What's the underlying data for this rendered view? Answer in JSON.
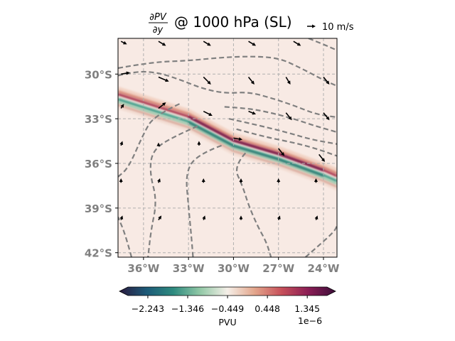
{
  "chart_data": {
    "type": "heatmap",
    "title": {
      "numerator": "∂PV",
      "denominator": "∂y",
      "suffix": "@ 1000 hPa (SL)"
    },
    "quiver_key": "10 m/s",
    "x_ticks": [
      {
        "value": -36,
        "label": "36°W"
      },
      {
        "value": -33,
        "label": "33°W"
      },
      {
        "value": -30,
        "label": "30°W"
      },
      {
        "value": -27,
        "label": "27°W"
      },
      {
        "value": -24,
        "label": "24°W"
      }
    ],
    "y_ticks": [
      {
        "value": -30,
        "label": "30°S"
      },
      {
        "value": -33,
        "label": "33°S"
      },
      {
        "value": -36,
        "label": "36°S"
      },
      {
        "value": -39,
        "label": "39°S"
      },
      {
        "value": -42,
        "label": "42°S"
      }
    ],
    "xlim": [
      -37.7,
      -23.1
    ],
    "ylim": [
      -42.3,
      -27.6
    ],
    "grid": true,
    "colorbar": {
      "label": "PVU",
      "offset_label": "1e−6",
      "tick_values": [
        -2.243,
        -1.346,
        -0.449,
        0.448,
        1.345
      ],
      "tick_labels": [
        "−2.243",
        "−1.346",
        "−0.449",
        "0.448",
        "1.345"
      ],
      "range": [
        -2.69,
        1.79
      ],
      "extend": "both",
      "colormap": [
        "#2a1a3e",
        "#1d5a78",
        "#2e8b7f",
        "#93c9a7",
        "#f5efe8",
        "#e3a68c",
        "#c7505a",
        "#8a1d55",
        "#3d0f3a"
      ]
    },
    "field_band": {
      "description_values": "dipole along front: positive (red) north edge, negative (teal) south edge",
      "front_axis": [
        [
          -37.7,
          -31.6
        ],
        [
          -33.0,
          -33.1
        ],
        [
          -30.0,
          -34.7
        ],
        [
          -27.0,
          -35.6
        ],
        [
          -24.0,
          -36.7
        ],
        [
          -23.1,
          -37.1
        ]
      ],
      "positive_amplitude": 1.2,
      "negative_amplitude": -1.5
    },
    "contours": [
      [
        [
          -37.7,
          -29.6
        ],
        [
          -35.5,
          -29.2
        ],
        [
          -33.0,
          -29.1
        ],
        [
          -31.0,
          -28.9
        ],
        [
          -29.0,
          -28.8
        ],
        [
          -27.0,
          -28.9
        ],
        [
          -25.5,
          -29.6
        ],
        [
          -24.0,
          -30.4
        ],
        [
          -23.1,
          -30.8
        ]
      ],
      [
        [
          -37.7,
          -30.1
        ],
        [
          -36.5,
          -29.8
        ],
        [
          -35.0,
          -29.9
        ],
        [
          -33.5,
          -30.4
        ],
        [
          -32.0,
          -31.0
        ],
        [
          -30.5,
          -31.3
        ],
        [
          -29.0,
          -31.2
        ],
        [
          -27.5,
          -31.6
        ],
        [
          -26.0,
          -32.1
        ],
        [
          -24.5,
          -32.7
        ],
        [
          -23.1,
          -32.9
        ]
      ],
      [
        [
          -30.6,
          -32.2
        ],
        [
          -29.0,
          -32.3
        ],
        [
          -27.5,
          -32.6
        ],
        [
          -26.0,
          -33.0
        ],
        [
          -24.5,
          -33.5
        ],
        [
          -23.1,
          -33.9
        ]
      ],
      [
        [
          -30.3,
          -33.0
        ],
        [
          -28.5,
          -33.4
        ],
        [
          -26.5,
          -33.9
        ],
        [
          -24.8,
          -34.4
        ],
        [
          -23.1,
          -34.7
        ]
      ],
      [
        [
          -29.8,
          -33.7
        ],
        [
          -28.0,
          -34.2
        ],
        [
          -26.0,
          -34.6
        ],
        [
          -24.5,
          -35.0
        ],
        [
          -23.1,
          -35.5
        ]
      ],
      [
        [
          -25.0,
          -27.6
        ],
        [
          -24.0,
          -28.0
        ],
        [
          -23.1,
          -28.4
        ]
      ],
      [
        [
          -36.8,
          -42.3
        ],
        [
          -37.2,
          -40.8
        ],
        [
          -37.7,
          -39.6
        ]
      ],
      [
        [
          -33.6,
          -32.0
        ],
        [
          -35.3,
          -32.8
        ],
        [
          -36.0,
          -34.0
        ],
        [
          -37.0,
          -36.3
        ],
        [
          -37.7,
          -36.9
        ]
      ],
      [
        [
          -32.4,
          -33.5
        ],
        [
          -34.0,
          -34.2
        ],
        [
          -35.4,
          -35.1
        ],
        [
          -35.6,
          -36.6
        ],
        [
          -35.1,
          -38.5
        ],
        [
          -35.5,
          -40.5
        ],
        [
          -35.7,
          -42.3
        ]
      ],
      [
        [
          -30.8,
          -34.8
        ],
        [
          -32.4,
          -35.4
        ],
        [
          -33.2,
          -36.6
        ],
        [
          -33.0,
          -38.9
        ],
        [
          -32.8,
          -41.0
        ],
        [
          -32.7,
          -42.3
        ]
      ],
      [
        [
          -29.2,
          -35.3
        ],
        [
          -30.0,
          -36.2
        ],
        [
          -29.4,
          -37.5
        ],
        [
          -29.0,
          -38.8
        ],
        [
          -28.4,
          -40.2
        ],
        [
          -27.8,
          -41.3
        ],
        [
          -27.5,
          -42.3
        ]
      ],
      [
        [
          -25.2,
          -42.3
        ],
        [
          -24.4,
          -41.6
        ],
        [
          -23.3,
          -40.6
        ],
        [
          -23.1,
          -40.2
        ]
      ]
    ],
    "wind_vectors": [
      {
        "x": -37.5,
        "y": -27.8,
        "u": 4,
        "v": -2
      },
      {
        "x": -35.0,
        "y": -27.8,
        "u": 5,
        "v": -3
      },
      {
        "x": -32.0,
        "y": -27.8,
        "u": 5,
        "v": -3
      },
      {
        "x": -29.0,
        "y": -27.8,
        "u": 5,
        "v": -3
      },
      {
        "x": -26.0,
        "y": -27.8,
        "u": 5,
        "v": -3
      },
      {
        "x": -37.5,
        "y": -30.0,
        "u": 6,
        "v": 1
      },
      {
        "x": -35.0,
        "y": -30.2,
        "u": 7,
        "v": -3
      },
      {
        "x": -32.0,
        "y": -30.2,
        "u": 5,
        "v": -5
      },
      {
        "x": -29.0,
        "y": -30.2,
        "u": 4,
        "v": -5
      },
      {
        "x": -26.5,
        "y": -30.2,
        "u": 3,
        "v": -5
      },
      {
        "x": -24.0,
        "y": -30.2,
        "u": 4,
        "v": -5
      },
      {
        "x": -37.5,
        "y": -32.3,
        "u": 2,
        "v": 3
      },
      {
        "x": -35.0,
        "y": -32.3,
        "u": 5,
        "v": 4
      },
      {
        "x": -32.0,
        "y": -32.5,
        "u": 6,
        "v": -3
      },
      {
        "x": -29.0,
        "y": -32.5,
        "u": 5,
        "v": -2
      },
      {
        "x": -26.5,
        "y": -32.6,
        "u": 4,
        "v": -5
      },
      {
        "x": -24.0,
        "y": -32.6,
        "u": 4,
        "v": -5
      },
      {
        "x": -37.5,
        "y": -34.8,
        "u": 1,
        "v": 3
      },
      {
        "x": -35.0,
        "y": -34.8,
        "u": 0,
        "v": 2
      },
      {
        "x": -32.3,
        "y": -34.8,
        "u": 0,
        "v": 3
      },
      {
        "x": -30.0,
        "y": -34.3,
        "u": 6,
        "v": -1
      },
      {
        "x": -27.0,
        "y": -35.0,
        "u": 4,
        "v": -5
      },
      {
        "x": -24.3,
        "y": -35.4,
        "u": 4,
        "v": -5
      },
      {
        "x": -37.5,
        "y": -37.3,
        "u": 0,
        "v": 3
      },
      {
        "x": -35.0,
        "y": -37.3,
        "u": 1,
        "v": 3
      },
      {
        "x": -32.0,
        "y": -37.3,
        "u": 0,
        "v": 3
      },
      {
        "x": -29.5,
        "y": -37.3,
        "u": 0,
        "v": 3
      },
      {
        "x": -27.0,
        "y": -37.3,
        "u": 0,
        "v": 3
      },
      {
        "x": -24.5,
        "y": -37.3,
        "u": 0,
        "v": 3
      },
      {
        "x": -37.5,
        "y": -39.8,
        "u": 1,
        "v": 3
      },
      {
        "x": -35.0,
        "y": -39.8,
        "u": 2,
        "v": 3
      },
      {
        "x": -32.0,
        "y": -39.8,
        "u": 1,
        "v": 3
      },
      {
        "x": -29.5,
        "y": -39.8,
        "u": 0,
        "v": 3
      },
      {
        "x": -27.0,
        "y": -39.8,
        "u": 1,
        "v": 3
      },
      {
        "x": -24.5,
        "y": -39.8,
        "u": 1,
        "v": 3
      }
    ]
  }
}
